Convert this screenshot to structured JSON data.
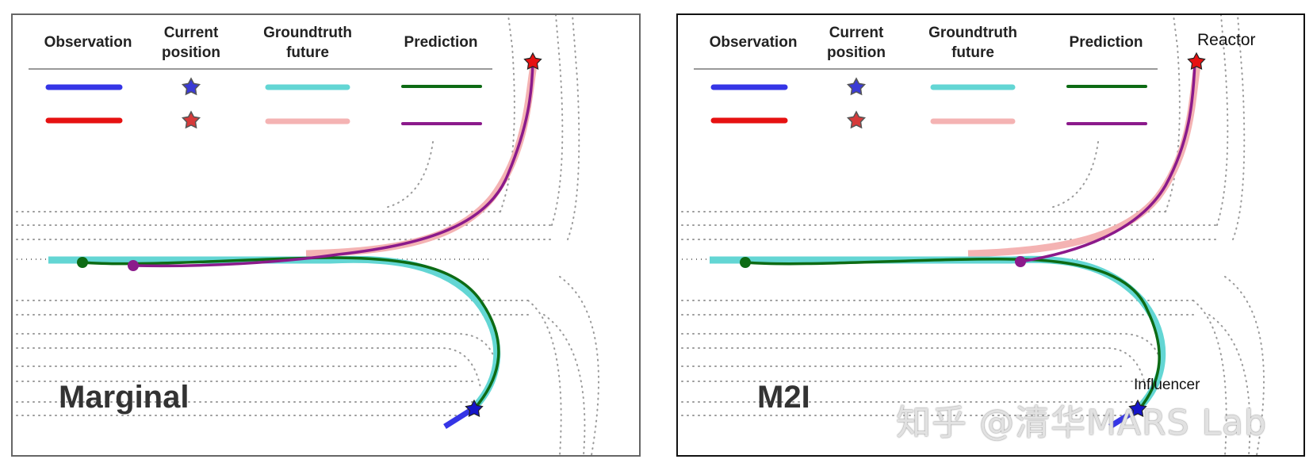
{
  "legend": {
    "columns": [
      "Observation",
      "Current\nposition",
      "Groundtruth\nfuture",
      "Prediction"
    ],
    "agents": [
      {
        "observation_color": "#3535e6",
        "star_color": "#3b3bd6",
        "groundtruth_color": "#63d6d4",
        "prediction_color": "#0d6b14"
      },
      {
        "observation_color": "#e61111",
        "star_color": "#d63a3a",
        "groundtruth_color": "#f4b3b3",
        "prediction_color": "#8b1a8b"
      }
    ]
  },
  "panels": [
    {
      "label": "Marginal"
    },
    {
      "label": "M2I",
      "reactor_label": "Reactor",
      "influencer_label": "Influencer"
    }
  ],
  "watermark": "知乎 @清华MARS Lab",
  "colors": {
    "observation_influencer": "#3535e6",
    "observation_reactor": "#e61111",
    "groundtruth_influencer": "#63d6d4",
    "groundtruth_reactor": "#f4b3b3",
    "prediction_influencer": "#0d6b14",
    "prediction_reactor": "#8b1a8b",
    "star_stroke": "#222222",
    "map_dots": "#9a9a9a"
  }
}
